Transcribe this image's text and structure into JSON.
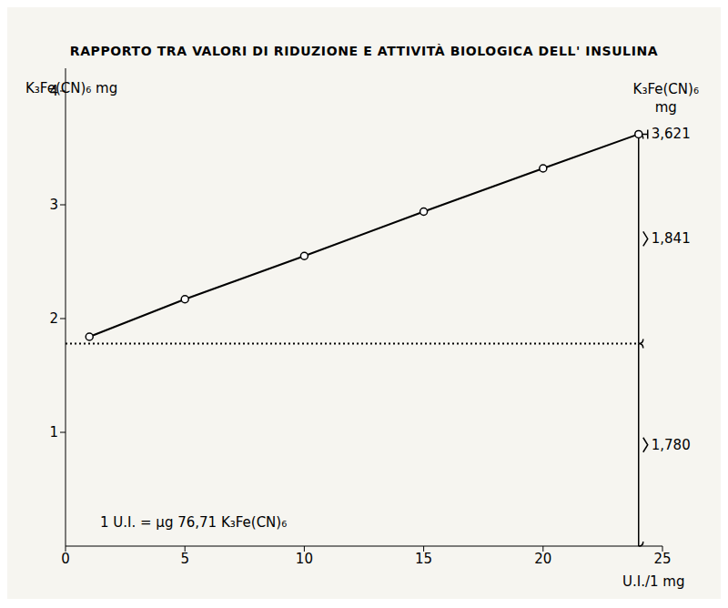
{
  "chart_data": {
    "type": "line",
    "title": "RAPPORTO TRA VALORI DI RIDUZIONE E ATTIVITÀ BIOLOGICA DELL' INSULINA",
    "x_label": "U.I./1 mg",
    "y_label": "K₃Fe(CN)₆ mg",
    "x": [
      1,
      5,
      10,
      15,
      20,
      24
    ],
    "values": [
      1.84,
      2.17,
      2.55,
      2.94,
      3.32,
      3.621
    ],
    "color": "#000000",
    "marker": "circle",
    "xlim": [
      0,
      25
    ],
    "xticks": [
      0,
      5,
      10,
      15,
      20,
      25
    ],
    "ylim": [
      0,
      4.2
    ],
    "yticks": [
      1,
      2,
      3,
      4
    ],
    "grid": false,
    "baseline": 1.78,
    "note": "1 U.I. = µg 76,71 K₃Fe(CN)₆",
    "right_label": "K₃Fe(CN)₆ mg",
    "end_value": {
      "value": 3.621,
      "label": "3,621"
    },
    "braces": [
      {
        "from": 1.78,
        "to": 3.621,
        "label": "1,841"
      },
      {
        "from": 0,
        "to": 1.78,
        "label": "1,780"
      }
    ]
  }
}
